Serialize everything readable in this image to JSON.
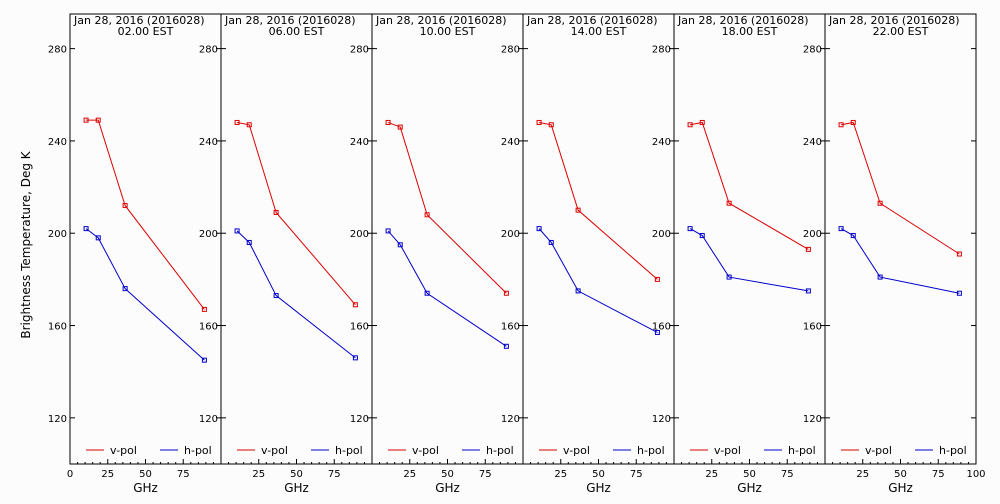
{
  "figure": {
    "ylabel": "Brightness Temperature, Deg K",
    "xlabel": "GHz"
  },
  "chart_data": [
    {
      "type": "line",
      "title": "Jan 28, 2016 (2016028)",
      "subtitle": "02.00 EST",
      "xlabel": "GHz",
      "ylabel": "Brightness Temperature, Deg K",
      "xlim": [
        0,
        100
      ],
      "ylim": [
        100,
        295
      ],
      "xticks": [
        "0",
        "25",
        "50",
        "75"
      ],
      "yticks": [
        "120",
        "160",
        "200",
        "240",
        "280"
      ],
      "x": [
        10.65,
        18.7,
        36.5,
        89.0
      ],
      "series": [
        {
          "name": "v-pol",
          "color": "#dd0000",
          "values": [
            249,
            249,
            212,
            167
          ]
        },
        {
          "name": "h-pol",
          "color": "#0000cc",
          "values": [
            202,
            198,
            176,
            145
          ]
        }
      ]
    },
    {
      "type": "line",
      "title": "Jan 28, 2016 (2016028)",
      "subtitle": "06.00 EST",
      "xlabel": "GHz",
      "ylabel": "Brightness Temperature, Deg K",
      "xlim": [
        0,
        100
      ],
      "ylim": [
        100,
        295
      ],
      "xticks": [
        "25",
        "50",
        "75"
      ],
      "yticks": [
        "120",
        "160",
        "200",
        "240",
        "280"
      ],
      "x": [
        10.65,
        18.7,
        36.5,
        89.0
      ],
      "series": [
        {
          "name": "v-pol",
          "color": "#dd0000",
          "values": [
            248,
            247,
            209,
            169
          ]
        },
        {
          "name": "h-pol",
          "color": "#0000cc",
          "values": [
            201,
            196,
            173,
            146
          ]
        }
      ]
    },
    {
      "type": "line",
      "title": "Jan 28, 2016 (2016028)",
      "subtitle": "10.00 EST",
      "xlabel": "GHz",
      "ylabel": "Brightness Temperature, Deg K",
      "xlim": [
        0,
        100
      ],
      "ylim": [
        100,
        295
      ],
      "xticks": [
        "25",
        "50",
        "75"
      ],
      "yticks": [
        "120",
        "160",
        "200",
        "240",
        "280"
      ],
      "x": [
        10.65,
        18.7,
        36.5,
        89.0
      ],
      "series": [
        {
          "name": "v-pol",
          "color": "#dd0000",
          "values": [
            248,
            246,
            208,
            174
          ]
        },
        {
          "name": "h-pol",
          "color": "#0000cc",
          "values": [
            201,
            195,
            174,
            151
          ]
        }
      ]
    },
    {
      "type": "line",
      "title": "Jan 28, 2016 (2016028)",
      "subtitle": "14.00 EST",
      "xlabel": "GHz",
      "ylabel": "Brightness Temperature, Deg K",
      "xlim": [
        0,
        100
      ],
      "ylim": [
        100,
        295
      ],
      "xticks": [
        "25",
        "50",
        "75"
      ],
      "yticks": [
        "120",
        "160",
        "200",
        "240",
        "280"
      ],
      "x": [
        10.65,
        18.7,
        36.5,
        89.0
      ],
      "series": [
        {
          "name": "v-pol",
          "color": "#dd0000",
          "values": [
            248,
            247,
            210,
            180
          ]
        },
        {
          "name": "h-pol",
          "color": "#0000cc",
          "values": [
            202,
            196,
            175,
            157
          ]
        }
      ]
    },
    {
      "type": "line",
      "title": "Jan 28, 2016 (2016028)",
      "subtitle": "18.00 EST",
      "xlabel": "GHz",
      "ylabel": "Brightness Temperature, Deg K",
      "xlim": [
        0,
        100
      ],
      "ylim": [
        100,
        295
      ],
      "xticks": [
        "25",
        "50",
        "75"
      ],
      "yticks": [
        "120",
        "160",
        "200",
        "240",
        "280"
      ],
      "x": [
        10.65,
        18.7,
        36.5,
        89.0
      ],
      "series": [
        {
          "name": "v-pol",
          "color": "#dd0000",
          "values": [
            247,
            248,
            213,
            193
          ]
        },
        {
          "name": "h-pol",
          "color": "#0000cc",
          "values": [
            202,
            199,
            181,
            175
          ]
        }
      ]
    },
    {
      "type": "line",
      "title": "Jan 28, 2016 (2016028)",
      "subtitle": "22.00 EST",
      "xlabel": "GHz",
      "ylabel": "Brightness Temperature, Deg K",
      "xlim": [
        0,
        100
      ],
      "ylim": [
        100,
        295
      ],
      "xticks": [
        "25",
        "50",
        "75",
        "100"
      ],
      "yticks": [
        "120",
        "160",
        "200",
        "240",
        "280"
      ],
      "x": [
        10.65,
        18.7,
        36.5,
        89.0
      ],
      "series": [
        {
          "name": "v-pol",
          "color": "#dd0000",
          "values": [
            247,
            248,
            213,
            191
          ]
        },
        {
          "name": "h-pol",
          "color": "#0000cc",
          "values": [
            202,
            199,
            181,
            174
          ]
        }
      ]
    }
  ]
}
